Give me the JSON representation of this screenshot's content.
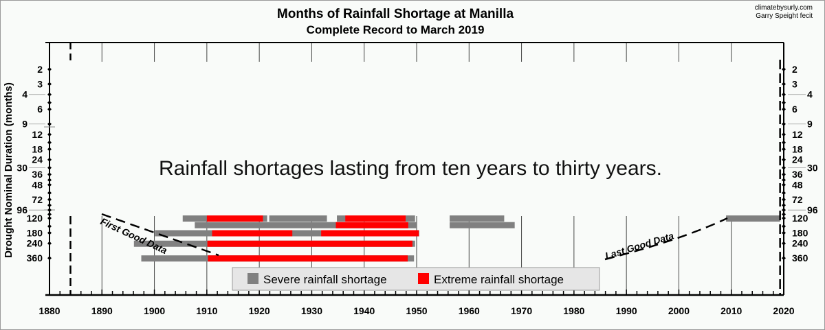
{
  "chart_data": {
    "type": "bar",
    "subtype": "horizontal-range",
    "title": "Months of Rainfall Shortage at Manilla",
    "subtitle": "Complete Record to March 2019",
    "credits": [
      "climatebysurly.com",
      "Garry Speight fecit"
    ],
    "ylabel": "Drought Nominal Duration (months)",
    "xlim": [
      1880,
      2020
    ],
    "xticks": [
      1880,
      1890,
      1900,
      1910,
      1920,
      1930,
      1940,
      1950,
      1960,
      1970,
      1980,
      1990,
      2000,
      2010,
      2020
    ],
    "y_scale": "log",
    "ylim": [
      1,
      900
    ],
    "yticks": [
      2,
      3,
      4,
      6,
      9,
      12,
      18,
      24,
      30,
      36,
      48,
      72,
      96,
      120,
      180,
      240,
      360
    ],
    "y_minor_markers": [
      5,
      15,
      42,
      60,
      84,
      108,
      150
    ],
    "grid": "vertical",
    "annotation": "Rainfall shortages lasting from ten years to thirty years.",
    "first_good_data": {
      "label": "First Good Data",
      "year": 1884
    },
    "last_good_data": {
      "label": "Last Good Data",
      "year": 2019.3
    },
    "legend": {
      "position": "bottom-center",
      "entries": [
        {
          "name": "Severe rainfall shortage",
          "color": "#808080"
        },
        {
          "name": "Extreme rainfall shortage",
          "color": "#ff0000"
        }
      ]
    },
    "series": [
      {
        "name": "Severe rainfall shortage",
        "color": "#808080",
        "ranges": [
          {
            "duration": 120,
            "start": 1905.4,
            "end": 1921.5
          },
          {
            "duration": 120,
            "start": 1921.9,
            "end": 1932.9
          },
          {
            "duration": 120,
            "start": 1934.8,
            "end": 1949.7
          },
          {
            "duration": 120,
            "start": 1956.3,
            "end": 1966.7
          },
          {
            "duration": 120,
            "start": 2009.0,
            "end": 2019.3
          },
          {
            "duration": 144,
            "start": 1907.7,
            "end": 1950.1
          },
          {
            "duration": 144,
            "start": 1956.3,
            "end": 1968.7
          },
          {
            "duration": 180,
            "start": 1900.1,
            "end": 1950.5
          },
          {
            "duration": 240,
            "start": 1896.1,
            "end": 1949.7
          },
          {
            "duration": 360,
            "start": 1897.5,
            "end": 1949.5
          }
        ]
      },
      {
        "name": "Extreme rainfall shortage",
        "color": "#ff0000",
        "ranges": [
          {
            "duration": 120,
            "start": 1910.0,
            "end": 1920.7
          },
          {
            "duration": 120,
            "start": 1936.4,
            "end": 1947.9
          },
          {
            "duration": 144,
            "start": 1934.6,
            "end": 1948.4
          },
          {
            "duration": 180,
            "start": 1911.0,
            "end": 1926.3
          },
          {
            "duration": 180,
            "start": 1931.8,
            "end": 1950.4
          },
          {
            "duration": 240,
            "start": 1910.1,
            "end": 1949.2
          },
          {
            "duration": 360,
            "start": 1910.2,
            "end": 1948.3
          }
        ]
      }
    ]
  }
}
